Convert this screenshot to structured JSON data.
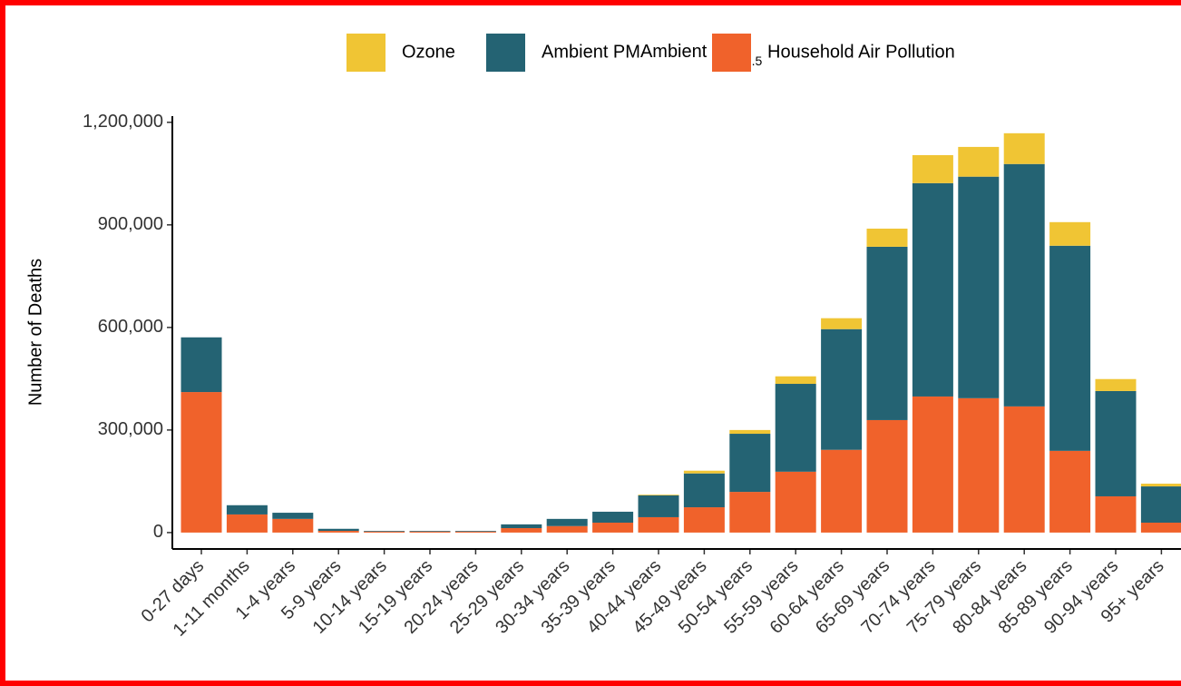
{
  "chart_data": {
    "type": "stacked_bar",
    "y_label": "Number of Deaths",
    "categories": [
      "0-27 days",
      "1-11 months",
      "1-4 years",
      "5-9 years",
      "10-14 years",
      "15-19 years",
      "20-24 years",
      "25-29 years",
      "30-34 years",
      "35-39 years",
      "40-44 years",
      "45-49 years",
      "50-54 years",
      "55-59 years",
      "60-64 years",
      "65-69 years",
      "70-74 years",
      "75-79 years",
      "80-84 years",
      "85-89 years",
      "90-94 years",
      "95+ years"
    ],
    "series": [
      {
        "name": "Ozone",
        "color": "#f0c534",
        "values": [
          0,
          0,
          0,
          0,
          0,
          0,
          0,
          0,
          0,
          0,
          2000,
          8000,
          11000,
          22000,
          32000,
          53000,
          82000,
          87000,
          90000,
          69000,
          35000,
          8000
        ]
      },
      {
        "name": "Ambient PM",
        "subscript": "2.5",
        "color": "#246373",
        "values": [
          160000,
          27000,
          18000,
          6000,
          2000,
          2000,
          2000,
          11000,
          21000,
          32000,
          64000,
          99000,
          170000,
          257000,
          353000,
          507000,
          624000,
          648000,
          709000,
          600000,
          308000,
          106000
        ]
      },
      {
        "name": "Household Air Pollution",
        "color": "#f0622b",
        "values": [
          411000,
          53000,
          40000,
          5000,
          3000,
          3000,
          3000,
          13000,
          19000,
          29000,
          45000,
          74000,
          119000,
          178000,
          242000,
          329000,
          398000,
          393000,
          369000,
          239000,
          106000,
          29000
        ]
      }
    ],
    "stack_order": [
      2,
      1,
      0
    ],
    "ylim": [
      -48000,
      1218000
    ],
    "yticks": [
      0,
      {
        "value": 300000,
        "label": "300,000"
      },
      {
        "value": 600000,
        "label": "600,000"
      },
      {
        "value": 900000,
        "label": "900,000"
      },
      {
        "value": 1200000,
        "label": "1,200,000"
      }
    ],
    "legend": "top"
  }
}
